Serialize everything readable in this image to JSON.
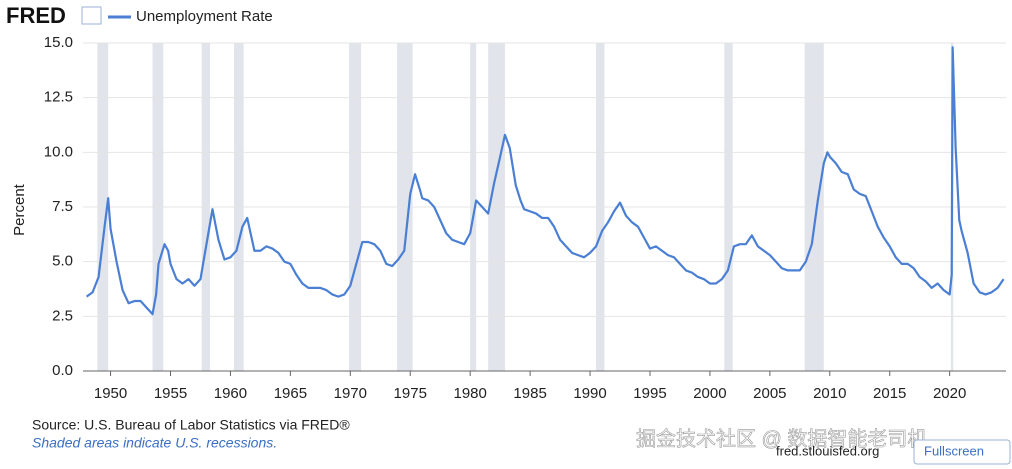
{
  "brand": "FRED",
  "chart_data": {
    "type": "line",
    "ylabel": "Percent",
    "xlim": [
      1947.7,
      2024.7
    ],
    "ylim": [
      0,
      15
    ],
    "xticks": [
      1950,
      1955,
      1960,
      1965,
      1970,
      1975,
      1980,
      1985,
      1990,
      1995,
      2000,
      2005,
      2010,
      2015,
      2020
    ],
    "yticks": [
      {
        "value": 0,
        "label": "0.0"
      },
      2.5,
      {
        "value": 5,
        "label": "5.0"
      },
      7.5,
      {
        "value": 10,
        "label": "10.0"
      },
      12.5,
      {
        "value": 15,
        "label": "15.0"
      }
    ],
    "grid": true,
    "recession_color": "#e1e4ea",
    "recessions": [
      [
        1948.9,
        1949.8
      ],
      [
        1953.5,
        1954.4
      ],
      [
        1957.6,
        1958.3
      ],
      [
        1960.3,
        1961.1
      ],
      [
        1969.9,
        1970.9
      ],
      [
        1973.9,
        1975.2
      ],
      [
        1980.0,
        1980.5
      ],
      [
        1981.5,
        1982.9
      ],
      [
        1990.5,
        1991.2
      ],
      [
        2001.2,
        2001.9
      ],
      [
        2007.9,
        2009.5
      ],
      [
        2020.1,
        2020.3
      ]
    ],
    "series": [
      {
        "name": "Unemployment Rate",
        "color": "#4a7fd4",
        "x": [
          1948.0,
          1948.5,
          1949.0,
          1949.5,
          1949.8,
          1950.0,
          1950.5,
          1951.0,
          1951.5,
          1952.0,
          1952.5,
          1953.0,
          1953.5,
          1953.8,
          1954.0,
          1954.5,
          1954.8,
          1955.0,
          1955.5,
          1956.0,
          1956.5,
          1957.0,
          1957.5,
          1958.0,
          1958.5,
          1959.0,
          1959.5,
          1960.0,
          1960.5,
          1961.0,
          1961.4,
          1961.8,
          1962.0,
          1962.5,
          1963.0,
          1963.5,
          1964.0,
          1964.5,
          1965.0,
          1965.5,
          1966.0,
          1966.5,
          1967.0,
          1967.5,
          1968.0,
          1968.5,
          1969.0,
          1969.5,
          1970.0,
          1970.5,
          1971.0,
          1971.5,
          1972.0,
          1972.5,
          1973.0,
          1973.5,
          1974.0,
          1974.5,
          1975.0,
          1975.4,
          1975.8,
          1976.0,
          1976.5,
          1977.0,
          1977.5,
          1978.0,
          1978.5,
          1979.0,
          1979.5,
          1980.0,
          1980.5,
          1981.0,
          1981.5,
          1982.0,
          1982.5,
          1982.9,
          1983.3,
          1983.8,
          1984.2,
          1984.5,
          1985.0,
          1985.5,
          1986.0,
          1986.5,
          1987.0,
          1987.5,
          1988.0,
          1988.5,
          1989.0,
          1989.5,
          1990.0,
          1990.5,
          1991.0,
          1991.5,
          1992.0,
          1992.5,
          1993.0,
          1993.5,
          1994.0,
          1994.5,
          1995.0,
          1995.5,
          1996.0,
          1996.5,
          1997.0,
          1997.5,
          1998.0,
          1998.5,
          1999.0,
          1999.5,
          2000.0,
          2000.5,
          2001.0,
          2001.5,
          2002.0,
          2002.5,
          2003.0,
          2003.5,
          2004.0,
          2004.5,
          2005.0,
          2005.5,
          2006.0,
          2006.5,
          2007.0,
          2007.5,
          2008.0,
          2008.5,
          2009.0,
          2009.5,
          2009.8,
          2010.0,
          2010.5,
          2011.0,
          2011.5,
          2012.0,
          2012.5,
          2013.0,
          2013.5,
          2014.0,
          2014.5,
          2015.0,
          2015.5,
          2016.0,
          2016.5,
          2017.0,
          2017.5,
          2018.0,
          2018.5,
          2019.0,
          2019.5,
          2020.0,
          2020.17,
          2020.25,
          2020.5,
          2020.8,
          2021.0,
          2021.5,
          2022.0,
          2022.5,
          2023.0,
          2023.5,
          2024.0,
          2024.5
        ],
        "values": [
          3.4,
          3.6,
          4.3,
          6.6,
          7.9,
          6.5,
          5.0,
          3.7,
          3.1,
          3.2,
          3.2,
          2.9,
          2.6,
          3.5,
          4.9,
          5.8,
          5.5,
          4.9,
          4.2,
          4.0,
          4.2,
          3.9,
          4.2,
          5.8,
          7.4,
          6.0,
          5.1,
          5.2,
          5.5,
          6.6,
          7.0,
          6.0,
          5.5,
          5.5,
          5.7,
          5.6,
          5.4,
          5.0,
          4.9,
          4.4,
          4.0,
          3.8,
          3.8,
          3.8,
          3.7,
          3.5,
          3.4,
          3.5,
          3.9,
          4.9,
          5.9,
          5.9,
          5.8,
          5.5,
          4.9,
          4.8,
          5.1,
          5.5,
          8.1,
          9.0,
          8.3,
          7.9,
          7.8,
          7.5,
          6.9,
          6.3,
          6.0,
          5.9,
          5.8,
          6.3,
          7.8,
          7.5,
          7.2,
          8.6,
          9.8,
          10.8,
          10.2,
          8.5,
          7.8,
          7.4,
          7.3,
          7.2,
          7.0,
          7.0,
          6.6,
          6.0,
          5.7,
          5.4,
          5.3,
          5.2,
          5.4,
          5.7,
          6.4,
          6.8,
          7.3,
          7.7,
          7.1,
          6.8,
          6.6,
          6.1,
          5.6,
          5.7,
          5.5,
          5.3,
          5.2,
          4.9,
          4.6,
          4.5,
          4.3,
          4.2,
          4.0,
          4.0,
          4.2,
          4.6,
          5.7,
          5.8,
          5.8,
          6.2,
          5.7,
          5.5,
          5.3,
          5.0,
          4.7,
          4.6,
          4.6,
          4.6,
          5.0,
          5.8,
          7.8,
          9.5,
          10.0,
          9.8,
          9.5,
          9.1,
          9.0,
          8.3,
          8.1,
          8.0,
          7.3,
          6.6,
          6.1,
          5.7,
          5.2,
          4.9,
          4.9,
          4.7,
          4.3,
          4.1,
          3.8,
          4.0,
          3.7,
          3.5,
          4.4,
          14.8,
          10.2,
          6.9,
          6.4,
          5.4,
          4.0,
          3.6,
          3.5,
          3.6,
          3.8,
          4.2
        ]
      }
    ]
  },
  "source": "Source: U.S. Bureau of Labor Statistics via FRED®",
  "note": "Shaded areas indicate U.S. recessions.",
  "site": "fred.stlouisfed.org",
  "button": "Fullscreen",
  "watermark": "掘金技术社区 @ 数据智能老司机"
}
